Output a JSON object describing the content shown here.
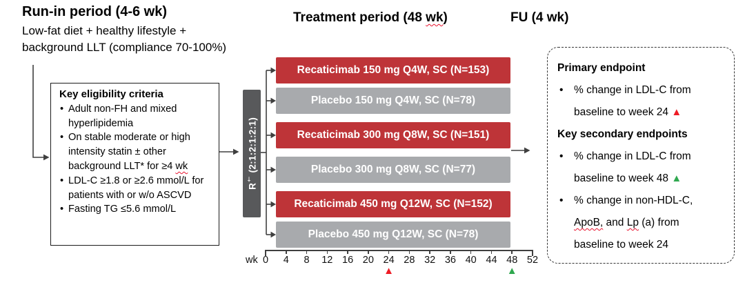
{
  "colors": {
    "arm_red": "#be3438",
    "arm_gray": "#a8aaad",
    "rand_bar": "#58595b",
    "line": "#3f3f3f",
    "marker_red": "#ee1c25",
    "marker_green": "#2fa84f",
    "squiggle": "#e8112d"
  },
  "phases": {
    "runin_title": "Run-in period (4-6 wk)",
    "runin_desc1": "Low-fat diet + healthy lifestyle +",
    "runin_desc2": "background LLT (compliance 70-100%)",
    "treatment_pre": "Treatment period (48 ",
    "treatment_wavy": "wk",
    "treatment_post": ")",
    "fu_title": "FU (4 wk)"
  },
  "eligibility": {
    "title": "Key eligibility criteria",
    "lines": [
      {
        "bullet": "•",
        "segs": [
          {
            "t": "Adult non-FH and mixed"
          }
        ]
      },
      {
        "segs": [
          {
            "t": "hyperlipidemia"
          }
        ]
      },
      {
        "bullet": "•",
        "segs": [
          {
            "t": "On stable moderate or high"
          }
        ]
      },
      {
        "segs": [
          {
            "t": "intensity statin ± other"
          }
        ]
      },
      {
        "segs": [
          {
            "t": "background LLT* for ≥4 "
          },
          {
            "t": "wk",
            "wavy": true
          }
        ]
      },
      {
        "bullet": "•",
        "segs": [
          {
            "t": "LDL-C ≥1.8 or ≥2.6 mmol/L for"
          }
        ]
      },
      {
        "segs": [
          {
            "t": "patients with or w/o ASCVD"
          }
        ]
      },
      {
        "bullet": "•",
        "segs": [
          {
            "t": "Fasting TG ≤5.6 mmol/L"
          }
        ]
      }
    ]
  },
  "randomization": {
    "r": "R",
    "dagger": "†",
    "ratio": " (2:1:2:1:2:1)"
  },
  "arms": [
    {
      "label": "Recaticimab 150 mg Q4W, SC (N=153)",
      "type": "drug"
    },
    {
      "label": "Placebo 150 mg Q4W, SC (N=78)",
      "type": "placebo"
    },
    {
      "label": "Recaticimab 300 mg Q8W, SC (N=151)",
      "type": "drug"
    },
    {
      "label": "Placebo 300 mg Q8W, SC (N=77)",
      "type": "placebo"
    },
    {
      "label": "Recaticimab 450 mg Q12W, SC (N=152)",
      "type": "drug"
    },
    {
      "label": "Placebo 450 mg Q12W, SC (N=78)",
      "type": "placebo"
    }
  ],
  "axis": {
    "unit": "wk",
    "weeks": [
      0,
      4,
      8,
      12,
      16,
      20,
      24,
      28,
      32,
      36,
      40,
      44,
      48,
      52
    ],
    "markers": [
      {
        "week": 24,
        "color": "red"
      },
      {
        "week": 48,
        "color": "green"
      }
    ]
  },
  "endpoints": {
    "lines": [
      {
        "bold": true,
        "segs": [
          {
            "t": "Primary endpoint"
          }
        ]
      },
      {
        "bullet": "•",
        "segs": [
          {
            "t": "% change in LDL-C from"
          }
        ]
      },
      {
        "segs": [
          {
            "t": "baseline to week 24 "
          },
          {
            "tri": "red"
          }
        ]
      },
      {
        "bold": true,
        "segs": [
          {
            "t": "Key secondary endpoints"
          }
        ]
      },
      {
        "bullet": "•",
        "segs": [
          {
            "t": "% change in LDL-C from"
          }
        ]
      },
      {
        "segs": [
          {
            "t": "baseline to week 48 "
          },
          {
            "tri": "green"
          }
        ]
      },
      {
        "bullet": "•",
        "segs": [
          {
            "t": "% change in non-HDL-C,"
          }
        ]
      },
      {
        "segs": [
          {
            "t": "ApoB,",
            "wavy": true
          },
          {
            "t": " and "
          },
          {
            "t": "Lp",
            "wavy": true
          },
          {
            "t": " (a) from"
          }
        ]
      },
      {
        "segs": [
          {
            "t": "baseline to week 24"
          }
        ]
      }
    ]
  }
}
